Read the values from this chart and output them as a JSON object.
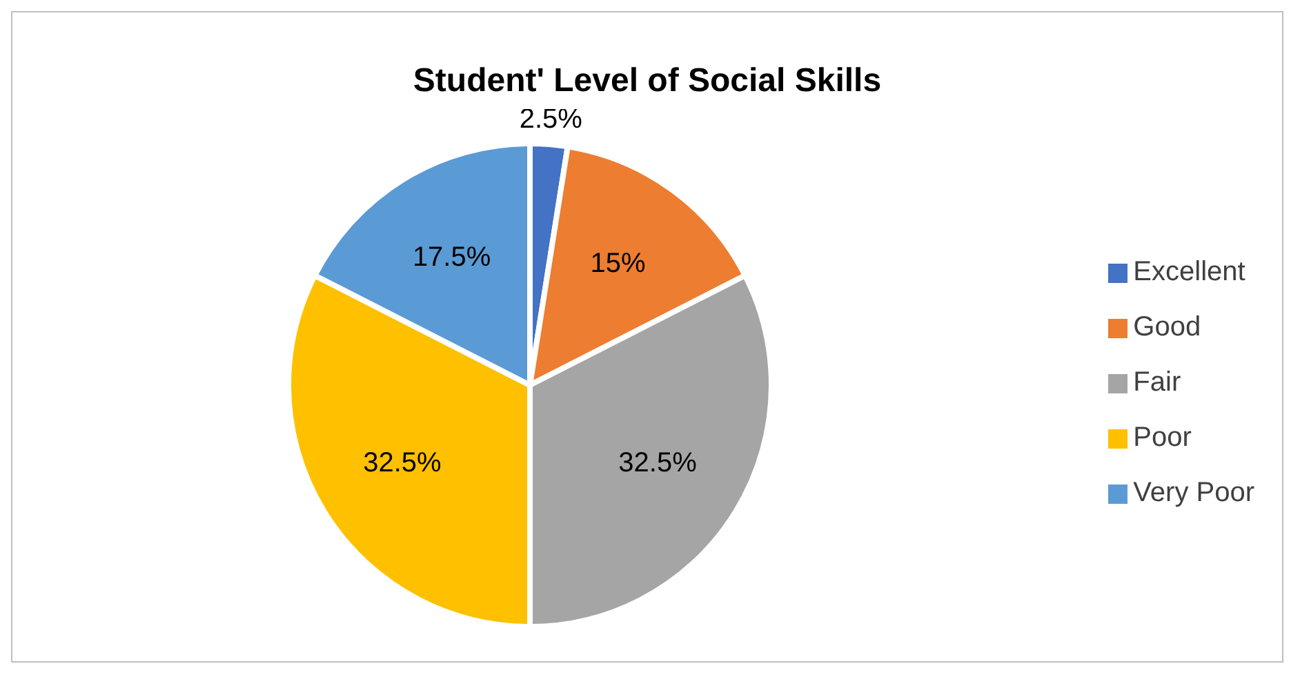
{
  "chart_data": {
    "type": "pie",
    "title": "Student' Level of Social Skills",
    "categories": [
      "Excellent",
      "Good",
      "Fair",
      "Poor",
      "Very Poor"
    ],
    "values": [
      2.5,
      15,
      32.5,
      32.5,
      17.5
    ],
    "colors": [
      "#4472c4",
      "#ed7d31",
      "#a5a5a5",
      "#ffc000",
      "#5b9bd5"
    ],
    "value_labels": [
      "2.5%",
      "15%",
      "32.5%",
      "32.5%",
      "17.5%"
    ],
    "legend": "right"
  }
}
